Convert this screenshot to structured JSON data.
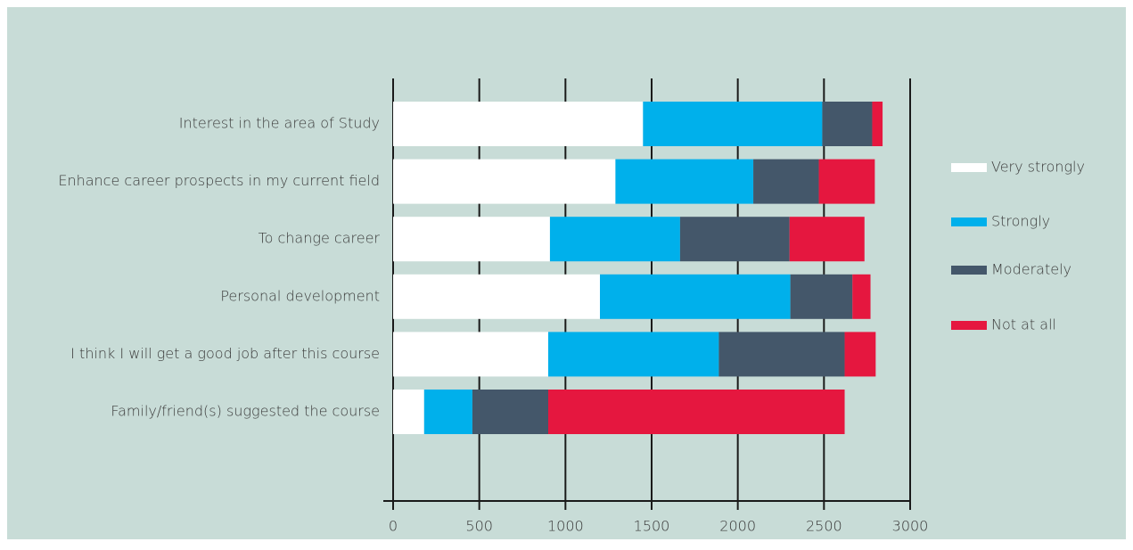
{
  "chart_data": {
    "type": "bar",
    "orientation": "horizontal",
    "stacked": true,
    "legend": "right",
    "grid": true,
    "categories": [
      "Interest in the area of Study",
      "Enhance career prospects in my current field",
      "To change career",
      "Personal development",
      "I think I will get a good job after this course",
      "Family/friend(s) suggested the course"
    ],
    "series": [
      {
        "name": "Very strongly",
        "color": "#ffffff",
        "values": [
          1450,
          1290,
          910,
          1200,
          900,
          180
        ]
      },
      {
        "name": "Strongly",
        "color": "#00b0eb",
        "values": [
          1040,
          800,
          755,
          1105,
          990,
          280
        ]
      },
      {
        "name": "Moderately",
        "color": "#44576a",
        "values": [
          290,
          380,
          635,
          360,
          730,
          440
        ]
      },
      {
        "name": "Not at all",
        "color": "#e5173f",
        "values": [
          60,
          325,
          435,
          105,
          180,
          1720
        ]
      }
    ],
    "xlim": [
      0,
      3000
    ],
    "xticks": [
      0,
      500,
      1000,
      1500,
      2000,
      2500,
      3000
    ]
  }
}
